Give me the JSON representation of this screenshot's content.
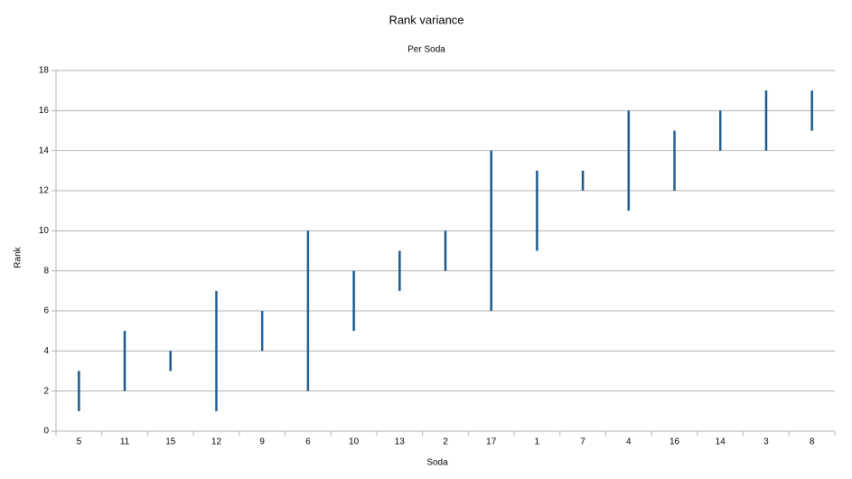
{
  "chart_data": {
    "type": "range",
    "title": "Rank variance",
    "subtitle": "Per Soda",
    "x_label": "Soda",
    "y_label": "Rank",
    "categories": [
      "5",
      "11",
      "15",
      "12",
      "9",
      "6",
      "10",
      "13",
      "2",
      "17",
      "1",
      "7",
      "4",
      "16",
      "14",
      "3",
      "8"
    ],
    "low": [
      1,
      2,
      3,
      1,
      4,
      2,
      5,
      7,
      8,
      6,
      9,
      12,
      11,
      12,
      14,
      14,
      15
    ],
    "high": [
      3,
      5,
      4,
      7,
      6,
      10,
      8,
      9,
      10,
      14,
      13,
      13,
      16,
      15,
      16,
      17,
      17
    ],
    "color": "#1c5a8e",
    "ylim": [
      0,
      18
    ],
    "yticks": [
      0,
      2,
      4,
      6,
      8,
      10,
      12,
      14,
      16,
      18
    ],
    "grid": true
  }
}
